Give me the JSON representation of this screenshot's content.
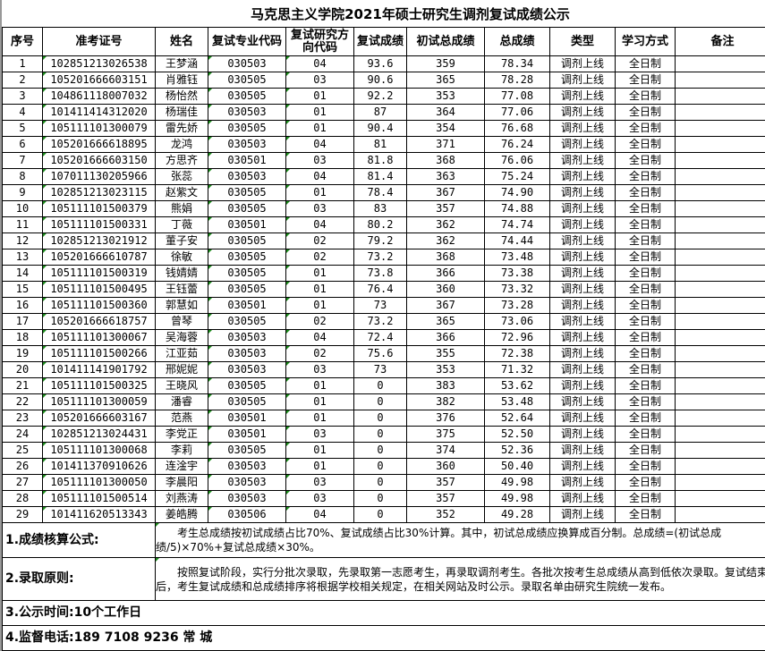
{
  "title": "马克思主义学院2021年硕士研究生调剂复试成绩公示",
  "headers": [
    "序号",
    "准考证号",
    "姓名",
    "复试专业代码",
    "复试研究方向代码",
    "复试成绩",
    "初试总成绩",
    "总成绩",
    "类型",
    "学习方式",
    "备注"
  ],
  "rows": [
    [
      "1",
      "102851213026538",
      "王梦涵",
      "030503",
      "04",
      "93.6",
      "359",
      "78.34",
      "调剂上线",
      "全日制",
      ""
    ],
    [
      "2",
      "105201666603151",
      "肖雅钰",
      "030505",
      "03",
      "90.6",
      "365",
      "78.28",
      "调剂上线",
      "全日制",
      ""
    ],
    [
      "3",
      "104861118007032",
      "杨怡然",
      "030505",
      "01",
      "92.2",
      "353",
      "77.08",
      "调剂上线",
      "全日制",
      ""
    ],
    [
      "4",
      "101411414312020",
      "杨瑞佳",
      "030503",
      "01",
      "87",
      "364",
      "77.06",
      "调剂上线",
      "全日制",
      ""
    ],
    [
      "5",
      "105111101300079",
      "雷先娇",
      "030505",
      "01",
      "90.4",
      "354",
      "76.68",
      "调剂上线",
      "全日制",
      ""
    ],
    [
      "6",
      "105201666618895",
      "龙鸿",
      "030503",
      "04",
      "81",
      "371",
      "76.24",
      "调剂上线",
      "全日制",
      ""
    ],
    [
      "7",
      "105201666603150",
      "方思齐",
      "030501",
      "03",
      "81.8",
      "368",
      "76.06",
      "调剂上线",
      "全日制",
      ""
    ],
    [
      "8",
      "107011130205966",
      "张蕊",
      "030503",
      "04",
      "81.4",
      "363",
      "75.24",
      "调剂上线",
      "全日制",
      ""
    ],
    [
      "9",
      "102851213023115",
      "赵紫文",
      "030505",
      "01",
      "78.4",
      "367",
      "74.90",
      "调剂上线",
      "全日制",
      ""
    ],
    [
      "10",
      "105111101500379",
      "熊娟",
      "030505",
      "03",
      "83",
      "357",
      "74.88",
      "调剂上线",
      "全日制",
      ""
    ],
    [
      "11",
      "105111101500331",
      "丁薇",
      "030501",
      "04",
      "80.2",
      "362",
      "74.74",
      "调剂上线",
      "全日制",
      ""
    ],
    [
      "12",
      "102851213021912",
      "董子安",
      "030505",
      "02",
      "79.2",
      "362",
      "74.44",
      "调剂上线",
      "全日制",
      ""
    ],
    [
      "13",
      "105201666610787",
      "徐敏",
      "030505",
      "02",
      "73.2",
      "368",
      "73.48",
      "调剂上线",
      "全日制",
      ""
    ],
    [
      "14",
      "105111101500319",
      "钱婧婧",
      "030505",
      "01",
      "73.8",
      "366",
      "73.38",
      "调剂上线",
      "全日制",
      ""
    ],
    [
      "15",
      "105111101500495",
      "王钰蕾",
      "030505",
      "01",
      "76.4",
      "360",
      "73.32",
      "调剂上线",
      "全日制",
      ""
    ],
    [
      "16",
      "105111101500360",
      "郭慧如",
      "030501",
      "01",
      "73",
      "367",
      "73.28",
      "调剂上线",
      "全日制",
      ""
    ],
    [
      "17",
      "105201666618757",
      "曾琴",
      "030505",
      "02",
      "73.2",
      "365",
      "73.06",
      "调剂上线",
      "全日制",
      ""
    ],
    [
      "18",
      "105111101300067",
      "吴海蓉",
      "030503",
      "04",
      "72.4",
      "366",
      "72.96",
      "调剂上线",
      "全日制",
      ""
    ],
    [
      "19",
      "105111101500266",
      "江亚茹",
      "030503",
      "02",
      "75.6",
      "355",
      "72.38",
      "调剂上线",
      "全日制",
      ""
    ],
    [
      "20",
      "101411141901792",
      "邢妮妮",
      "030503",
      "03",
      "73",
      "353",
      "71.32",
      "调剂上线",
      "全日制",
      ""
    ],
    [
      "21",
      "105111101500325",
      "王晓风",
      "030505",
      "01",
      "0",
      "383",
      "53.62",
      "调剂上线",
      "全日制",
      ""
    ],
    [
      "22",
      "105111101300059",
      "潘睿",
      "030505",
      "01",
      "0",
      "382",
      "53.48",
      "调剂上线",
      "全日制",
      ""
    ],
    [
      "23",
      "105201666603167",
      "范燕",
      "030501",
      "01",
      "0",
      "376",
      "52.64",
      "调剂上线",
      "全日制",
      ""
    ],
    [
      "24",
      "102851213024431",
      "李党正",
      "030501",
      "03",
      "0",
      "375",
      "52.50",
      "调剂上线",
      "全日制",
      ""
    ],
    [
      "25",
      "105111101300068",
      "李莉",
      "030505",
      "01",
      "0",
      "374",
      "52.36",
      "调剂上线",
      "全日制",
      ""
    ],
    [
      "26",
      "101411370910626",
      "连淦宇",
      "030503",
      "01",
      "0",
      "360",
      "50.40",
      "调剂上线",
      "全日制",
      ""
    ],
    [
      "27",
      "105111101300050",
      "李晨阳",
      "030503",
      "03",
      "0",
      "357",
      "49.98",
      "调剂上线",
      "全日制",
      ""
    ],
    [
      "28",
      "105111101500514",
      "刘燕涛",
      "030503",
      "03",
      "0",
      "357",
      "49.98",
      "调剂上线",
      "全日制",
      ""
    ],
    [
      "29",
      "101411620513343",
      "姜皓腾",
      "030506",
      "04",
      "0",
      "352",
      "49.28",
      "调剂上线",
      "全日制",
      ""
    ]
  ],
  "footer": {
    "formula_label": "1.成绩核算公式:",
    "formula_text": "考生总成绩按初试成绩占比70%、复试成绩占比30%计算。其中，初试总成绩应换算成百分制。总成绩=(初试总成绩/5)×70%+复试总成绩×30%。",
    "principle_label": "2.录取原则:",
    "principle_text": "按照复试阶段，实行分批次录取，先录取第一志愿考生，再录取调剂考生。各批次按考生总成绩从高到低依次录取。复试结束后，考生复试成绩和总成绩排序将根据学校相关规定，在相关网站及时公示。录取名单由研究生院统一发布。",
    "period": "3.公示时间:10个工作日",
    "phone": "4.监督电话:189 7108 9236 常 城"
  }
}
